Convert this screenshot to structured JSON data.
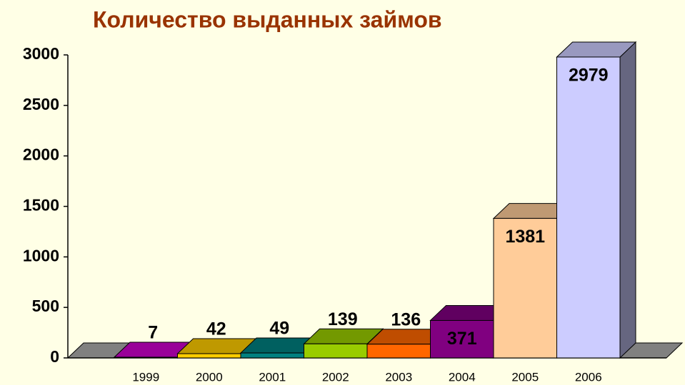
{
  "chart_data": {
    "type": "bar3d",
    "title": "Количество выданных займов",
    "categories": [
      "1999",
      "2000",
      "2001",
      "2002",
      "2003",
      "2004",
      "2005",
      "2006"
    ],
    "values": [
      7,
      42,
      49,
      139,
      136,
      371,
      1381,
      2979
    ],
    "colors": [
      "#cc00cc",
      "#ffcc00",
      "#008080",
      "#99cc00",
      "#ff6600",
      "#800080",
      "#ffcc99",
      "#ccccff"
    ],
    "ylim": [
      0,
      3000
    ],
    "yticks": [
      0,
      500,
      1000,
      1500,
      2000,
      2500,
      3000
    ]
  }
}
